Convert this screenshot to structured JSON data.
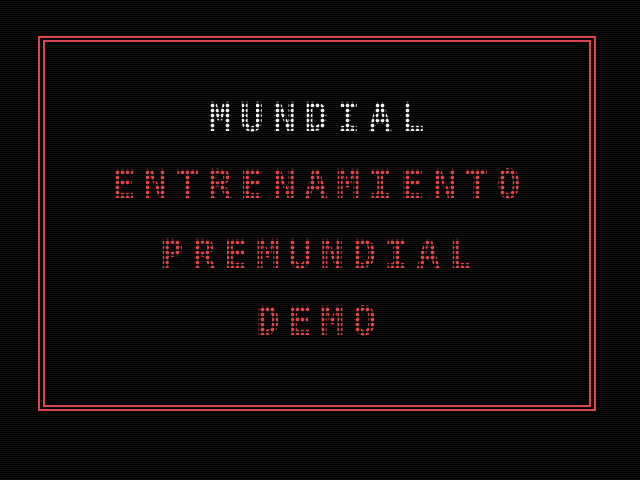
{
  "colors": {
    "background": "#000000",
    "frame": "#d8454a",
    "selected_text": "#f2f2f2",
    "normal_text": "#e0454c"
  },
  "menu": {
    "items": [
      {
        "label": "MUNDIAL",
        "selected": true
      },
      {
        "label": "ENTRENAMIENTO",
        "selected": false
      },
      {
        "label": "PREMUNDIAL",
        "selected": false
      },
      {
        "label": "DEMO",
        "selected": false
      }
    ]
  }
}
